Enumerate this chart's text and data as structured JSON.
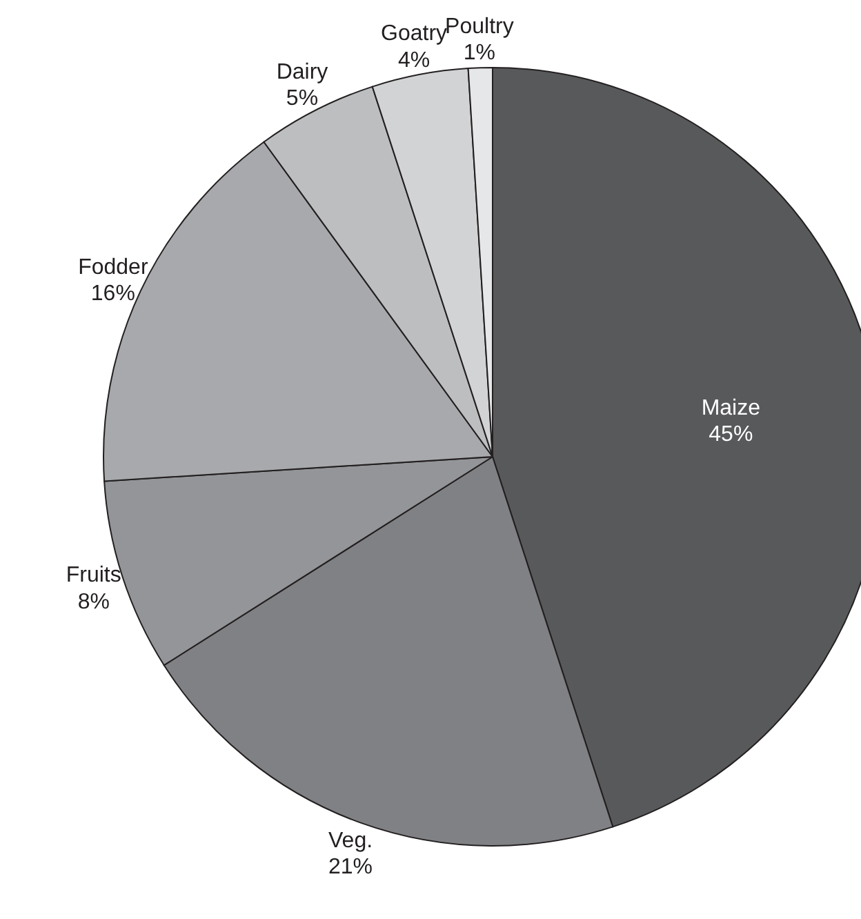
{
  "chart_data": {
    "type": "pie",
    "categories": [
      "Maize",
      "Veg.",
      "Fruits",
      "Fodder",
      "Dairy",
      "Goatry",
      "Poultry"
    ],
    "values": [
      45,
      21,
      8,
      16,
      5,
      4,
      1
    ],
    "value_labels": [
      "45%",
      "21%",
      "8%",
      "16%",
      "5%",
      "4%",
      "1%"
    ],
    "colors": [
      "#58595b",
      "#808184",
      "#939598",
      "#a7a9ac",
      "#bcbec0",
      "#d1d3d4",
      "#e6e7e8"
    ],
    "legend": false
  }
}
